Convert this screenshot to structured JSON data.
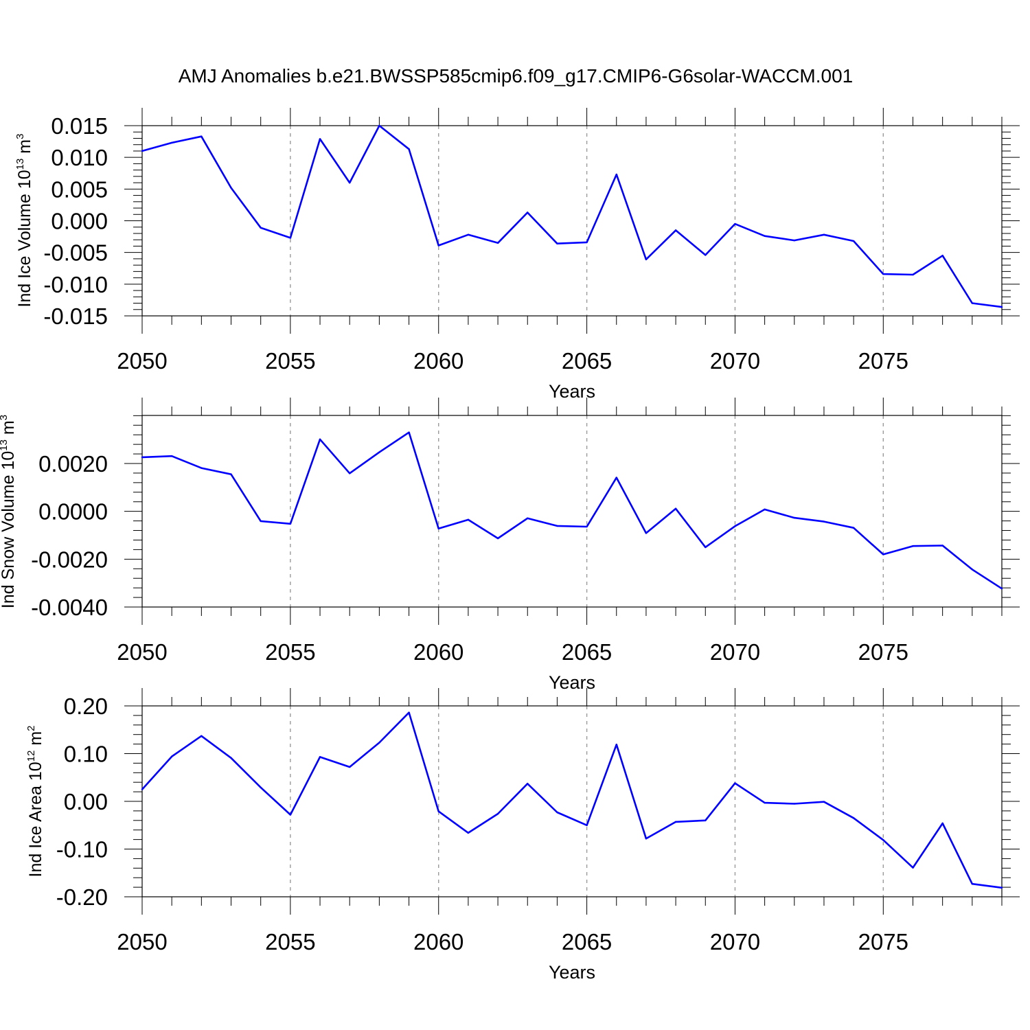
{
  "title": "AMJ Anomalies b.e21.BWSSP585cmip6.f09_g17.CMIP6-G6solar-WACCM.001",
  "colors": {
    "series": "#0000ff",
    "grid": "#9a9a9a"
  },
  "chart_data": [
    {
      "type": "line",
      "ylabel": {
        "main": "Ind Ice Volume 10",
        "exp": "13",
        "unit": " m",
        "unit_exp": "3"
      },
      "xlabel": "Years",
      "xlim": [
        2050,
        2079
      ],
      "ylim": [
        -0.015,
        0.015
      ],
      "yticks": [
        "0.015",
        "0.010",
        "0.005",
        "0.000",
        "-0.005",
        "-0.010",
        "-0.015"
      ],
      "ytick_values": [
        0.015,
        0.01,
        0.005,
        0.0,
        -0.005,
        -0.01,
        -0.015
      ],
      "xticks": [
        "2050",
        "2055",
        "2060",
        "2065",
        "2070",
        "2075"
      ],
      "xtick_values": [
        2050,
        2055,
        2060,
        2065,
        2070,
        2075
      ],
      "grid": "vertical dashed at major x ticks",
      "x": [
        2050,
        2051,
        2052,
        2053,
        2054,
        2055,
        2056,
        2057,
        2058,
        2059,
        2060,
        2061,
        2062,
        2063,
        2064,
        2065,
        2066,
        2067,
        2068,
        2069,
        2070,
        2071,
        2072,
        2073,
        2074,
        2075,
        2076,
        2077,
        2078,
        2079
      ],
      "y": [
        0.011,
        0.0123,
        0.0133,
        0.0052,
        -0.0011,
        -0.0027,
        0.0129,
        0.006,
        0.015,
        0.0113,
        -0.0039,
        -0.0022,
        -0.0035,
        0.0013,
        -0.0036,
        -0.0034,
        0.0073,
        -0.0061,
        -0.0015,
        -0.0054,
        -0.0005,
        -0.0024,
        -0.0031,
        -0.0022,
        -0.0032,
        -0.0084,
        -0.0085,
        -0.0055,
        -0.013,
        -0.0136
      ]
    },
    {
      "type": "line",
      "ylabel": {
        "main": "Ind Snow Volume 10",
        "exp": "13",
        "unit": " m",
        "unit_exp": "3"
      },
      "xlabel": "Years",
      "xlim": [
        2050,
        2079
      ],
      "ylim": [
        -0.004,
        0.004
      ],
      "yticks": [
        "0.0020",
        "0.0000",
        "-0.0020",
        "-0.0040"
      ],
      "ytick_values": [
        0.002,
        0.0,
        -0.002,
        -0.004
      ],
      "xticks": [
        "2050",
        "2055",
        "2060",
        "2065",
        "2070",
        "2075"
      ],
      "xtick_values": [
        2050,
        2055,
        2060,
        2065,
        2070,
        2075
      ],
      "grid": "vertical dashed at major x ticks",
      "x": [
        2050,
        2051,
        2052,
        2053,
        2054,
        2055,
        2056,
        2057,
        2058,
        2059,
        2060,
        2061,
        2062,
        2063,
        2064,
        2065,
        2066,
        2067,
        2068,
        2069,
        2070,
        2071,
        2072,
        2073,
        2074,
        2075,
        2076,
        2077,
        2078,
        2079
      ],
      "y": [
        0.00226,
        0.00231,
        0.00181,
        0.00155,
        -0.00041,
        -0.00052,
        0.00301,
        0.00159,
        0.00247,
        0.0033,
        -0.00072,
        -0.00035,
        -0.00113,
        -0.00029,
        -0.00061,
        -0.00064,
        0.00141,
        -0.00091,
        0.00011,
        -0.0015,
        -0.00062,
        8e-05,
        -0.00027,
        -0.00043,
        -0.00069,
        -0.0018,
        -0.00145,
        -0.00143,
        -0.00243,
        -0.00323
      ]
    },
    {
      "type": "line",
      "ylabel": {
        "main": "Ind Ice Area 10",
        "exp": "12",
        "unit": " m",
        "unit_exp": "2"
      },
      "xlabel": "Years",
      "xlim": [
        2050,
        2079
      ],
      "ylim": [
        -0.2,
        0.2
      ],
      "yticks": [
        "0.20",
        "0.10",
        "0.00",
        "-0.10",
        "-0.20"
      ],
      "ytick_values": [
        0.2,
        0.1,
        0.0,
        -0.1,
        -0.2
      ],
      "xticks": [
        "2050",
        "2055",
        "2060",
        "2065",
        "2070",
        "2075"
      ],
      "xtick_values": [
        2050,
        2055,
        2060,
        2065,
        2070,
        2075
      ],
      "grid": "vertical dashed at major x ticks",
      "x": [
        2050,
        2051,
        2052,
        2053,
        2054,
        2055,
        2056,
        2057,
        2058,
        2059,
        2060,
        2061,
        2062,
        2063,
        2064,
        2065,
        2066,
        2067,
        2068,
        2069,
        2070,
        2071,
        2072,
        2073,
        2074,
        2075,
        2076,
        2077,
        2078,
        2079
      ],
      "y": [
        0.025,
        0.094,
        0.137,
        0.091,
        0.029,
        -0.028,
        0.093,
        0.072,
        0.123,
        0.186,
        -0.021,
        -0.066,
        -0.026,
        0.037,
        -0.023,
        -0.05,
        0.119,
        -0.078,
        -0.043,
        -0.04,
        0.038,
        -0.003,
        -0.005,
        -0.001,
        -0.035,
        -0.081,
        -0.139,
        -0.046,
        -0.173,
        -0.181
      ]
    }
  ]
}
